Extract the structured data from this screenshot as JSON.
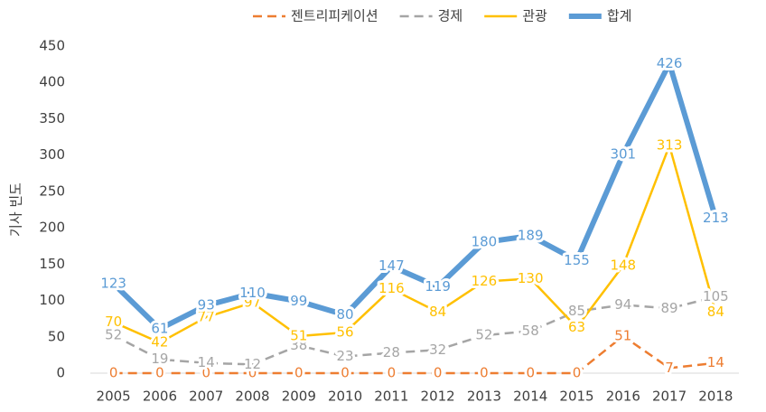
{
  "chart_data": {
    "type": "line",
    "y_label": "기사 빈도",
    "categories": [
      "2005",
      "2006",
      "2007",
      "2008",
      "2009",
      "2010",
      "2011",
      "2012",
      "2013",
      "2014",
      "2015",
      "2016",
      "2017",
      "2018"
    ],
    "series": [
      {
        "name": "젠트리피케이션",
        "color": "#ED7D31",
        "dash": true,
        "width": 2.5,
        "values": [
          0,
          0,
          0,
          0,
          0,
          0,
          0,
          0,
          0,
          0,
          0,
          51,
          7,
          14
        ]
      },
      {
        "name": "경제",
        "color": "#A5A5A5",
        "dash": true,
        "width": 2.5,
        "values": [
          52,
          19,
          14,
          12,
          38,
          23,
          28,
          32,
          52,
          58,
          85,
          94,
          89,
          105
        ]
      },
      {
        "name": "관광",
        "color": "#FFC000",
        "dash": false,
        "width": 2.5,
        "values": [
          70,
          42,
          77,
          97,
          51,
          56,
          116,
          84,
          126,
          130,
          63,
          148,
          313,
          84
        ]
      },
      {
        "name": "합계",
        "color": "#5B9BD5",
        "dash": false,
        "width": 6,
        "values": [
          123,
          61,
          93,
          110,
          99,
          80,
          147,
          119,
          180,
          189,
          155,
          301,
          426,
          213
        ]
      }
    ],
    "ylim": [
      0,
      450
    ],
    "yticks": [
      0,
      50,
      100,
      150,
      200,
      250,
      300,
      350,
      400,
      450
    ],
    "grid": false,
    "legend": "top"
  }
}
